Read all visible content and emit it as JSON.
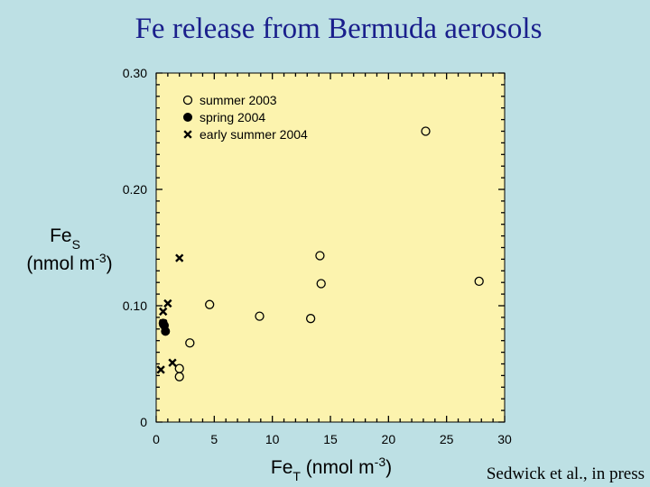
{
  "slide": {
    "title": "Fe release from Bermuda aerosols",
    "credit": "Sedwick et al., in press"
  },
  "colors": {
    "background": "#bde0e4",
    "plot_background": "#fcf3ae",
    "title": "#1a1f8c",
    "marker": "#000000"
  },
  "chart_data": {
    "type": "scatter",
    "title": "",
    "xlabel": {
      "main": "Fe",
      "sub": "T",
      "unit_pre": " (nmol m",
      "sup": "-3",
      "unit_post": ")"
    },
    "ylabel": {
      "main": "Fe",
      "sub": "S",
      "unit_pre": "(nmol m",
      "sup": "-3",
      "unit_post": ")"
    },
    "xlim": [
      0,
      30
    ],
    "ylim": [
      0,
      0.3
    ],
    "x_ticks": [
      0,
      5,
      10,
      15,
      20,
      25,
      30
    ],
    "x_tick_labels": [
      "0",
      "5",
      "10",
      "15",
      "20",
      "25",
      "30"
    ],
    "y_ticks": [
      0,
      0.1,
      0.2,
      0.3
    ],
    "y_tick_labels": [
      "0",
      "0.10",
      "0.20",
      "0.30"
    ],
    "grid": false,
    "legend_position": "top-left",
    "series": [
      {
        "name": "summer 2003",
        "marker": "open-circle",
        "points": [
          {
            "x": 23.2,
            "y": 0.25
          },
          {
            "x": 14.1,
            "y": 0.143
          },
          {
            "x": 14.2,
            "y": 0.119
          },
          {
            "x": 27.8,
            "y": 0.121
          },
          {
            "x": 4.6,
            "y": 0.101
          },
          {
            "x": 8.9,
            "y": 0.091
          },
          {
            "x": 13.3,
            "y": 0.089
          },
          {
            "x": 2.9,
            "y": 0.068
          },
          {
            "x": 2.0,
            "y": 0.046
          },
          {
            "x": 2.0,
            "y": 0.039
          }
        ]
      },
      {
        "name": "spring 2004",
        "marker": "filled-circle",
        "points": [
          {
            "x": 0.6,
            "y": 0.085
          },
          {
            "x": 0.7,
            "y": 0.083
          },
          {
            "x": 0.8,
            "y": 0.078
          }
        ]
      },
      {
        "name": "early summer 2004",
        "marker": "x",
        "points": [
          {
            "x": 2.0,
            "y": 0.141
          },
          {
            "x": 1.0,
            "y": 0.102
          },
          {
            "x": 0.6,
            "y": 0.095
          },
          {
            "x": 0.6,
            "y": 0.085
          },
          {
            "x": 1.4,
            "y": 0.051
          },
          {
            "x": 0.4,
            "y": 0.045
          }
        ]
      }
    ]
  }
}
